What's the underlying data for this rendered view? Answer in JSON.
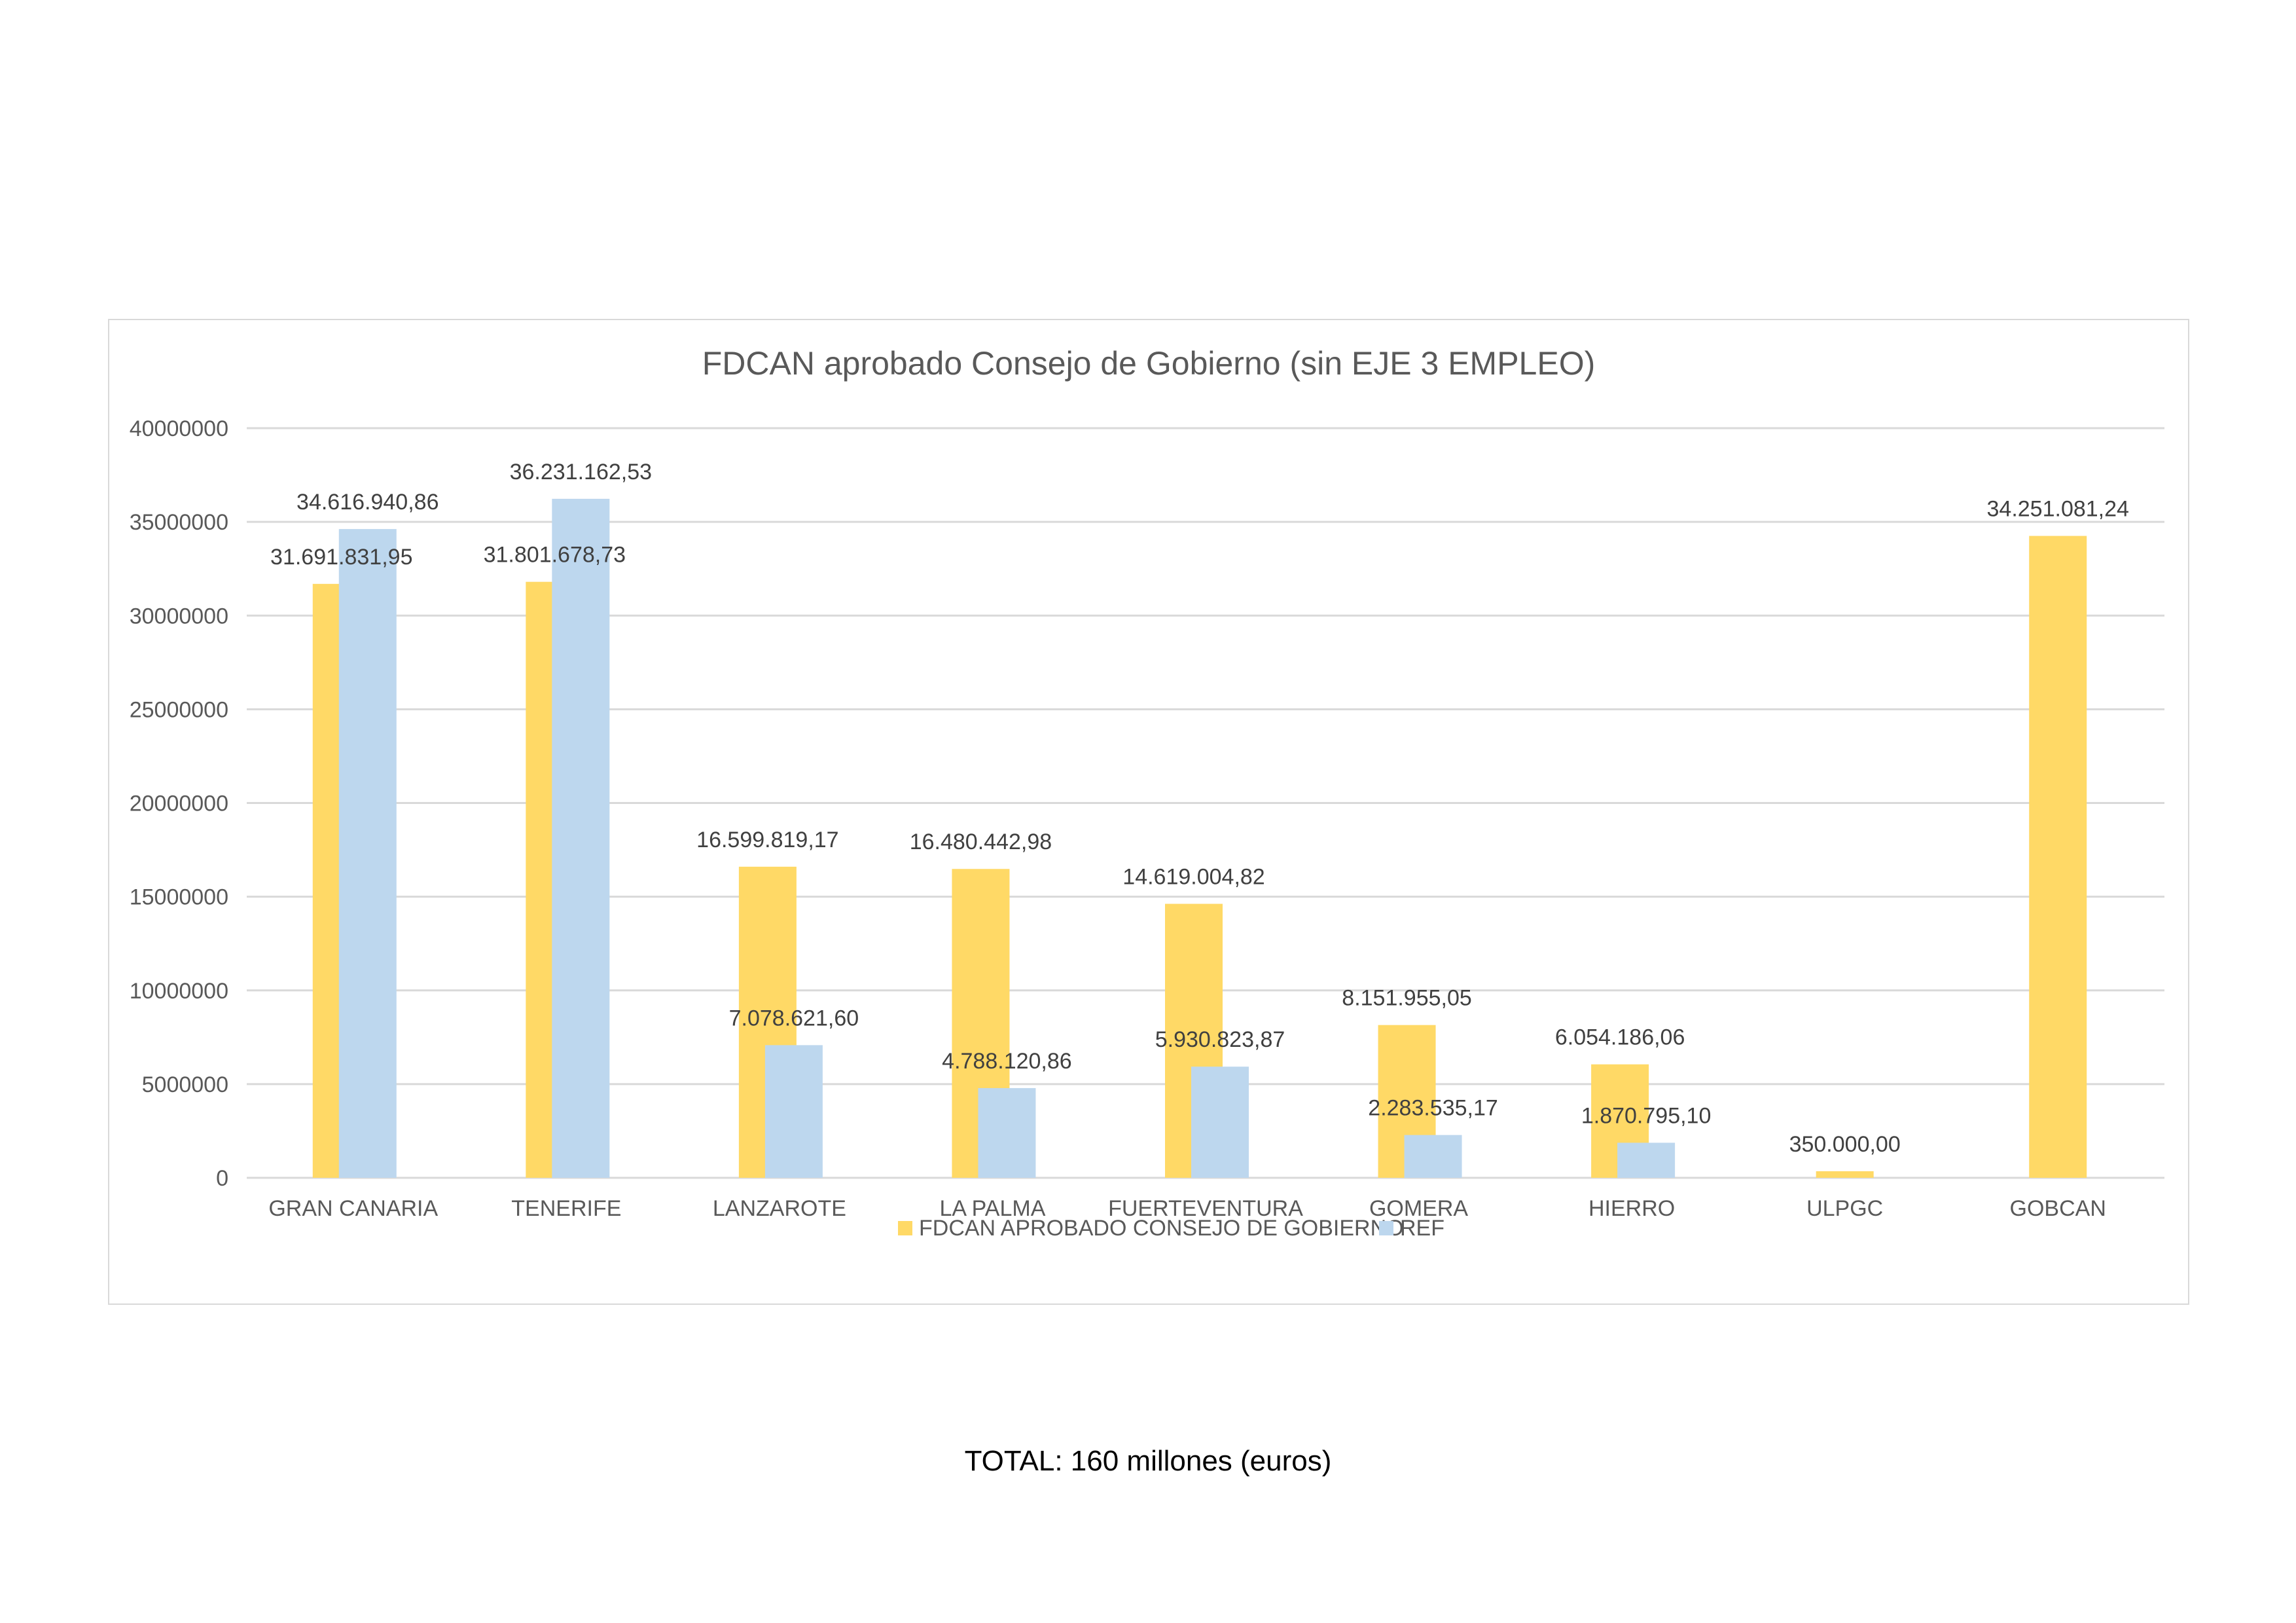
{
  "caption": "TOTAL: 160 millones (euros)",
  "chart_data": {
    "type": "bar",
    "title": "FDCAN aprobado Consejo de Gobierno (sin EJE 3 EMPLEO)",
    "xlabel": "",
    "ylabel": "",
    "ylim": [
      0,
      40000000
    ],
    "yticks": [
      0,
      5000000,
      10000000,
      15000000,
      20000000,
      25000000,
      30000000,
      35000000,
      40000000
    ],
    "ytick_labels": [
      "0",
      "5000000",
      "10000000",
      "15000000",
      "20000000",
      "25000000",
      "30000000",
      "35000000",
      "40000000"
    ],
    "grid": true,
    "legend_position": "bottom",
    "categories": [
      "GRAN CANARIA",
      "TENERIFE",
      "LANZAROTE",
      "LA PALMA",
      "FUERTEVENTURA",
      "GOMERA",
      "HIERRO",
      "ULPGC",
      "GOBCAN"
    ],
    "series": [
      {
        "name": "FDCAN APROBADO CONSEJO DE GOBIERNO",
        "color": "#ffd966",
        "values": [
          31691831.95,
          31801678.73,
          16599819.17,
          16480442.98,
          14619004.82,
          8151955.05,
          6054186.06,
          350000.0,
          34251081.24
        ],
        "labels": [
          "31.691.831,95",
          "31.801.678,73",
          "16.599.819,17",
          "16.480.442,98",
          "14.619.004,82",
          "8.151.955,05",
          "6.054.186,06",
          "350.000,00",
          "34.251.081,24"
        ]
      },
      {
        "name": "REF",
        "color": "#bdd7ee",
        "values": [
          34616940.86,
          36231162.53,
          7078621.6,
          4788120.86,
          5930823.87,
          2283535.17,
          1870795.1,
          null,
          null
        ],
        "labels": [
          "34.616.940,86",
          "36.231.162,53",
          "7.078.621,60",
          "4.788.120,86",
          "5.930.823,87",
          "2.283.535,17",
          "1.870.795,10",
          "",
          ""
        ]
      }
    ]
  }
}
